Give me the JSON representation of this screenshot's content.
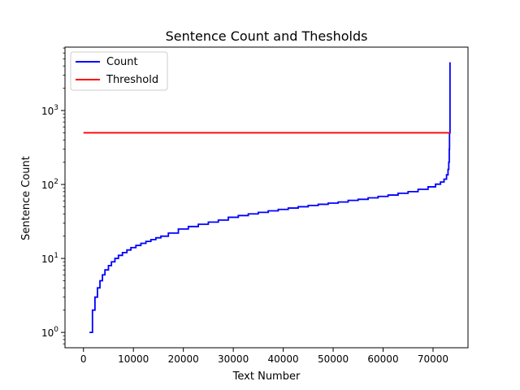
{
  "chart_data": {
    "type": "line",
    "title": "Sentence Count and Thesholds",
    "xlabel": "Text Number",
    "ylabel": "Sentence Count",
    "xlim": [
      -3700,
      77000
    ],
    "ylim": [
      0.62,
      7200
    ],
    "yscale": "log",
    "grid": false,
    "legend_position": "top-left",
    "x_ticks": [
      0,
      10000,
      20000,
      30000,
      40000,
      50000,
      60000,
      70000
    ],
    "x_tick_labels": [
      "0",
      "10000",
      "20000",
      "30000",
      "40000",
      "50000",
      "60000",
      "70000"
    ],
    "y_ticks": [
      1,
      10,
      100,
      1000
    ],
    "y_tick_labels": [
      "10^0",
      "10^1",
      "10^2",
      "10^3"
    ],
    "series": [
      {
        "name": "Count",
        "color": "#0000ff",
        "style": "step",
        "points": [
          [
            1200,
            1
          ],
          [
            1800,
            2
          ],
          [
            2300,
            3
          ],
          [
            2800,
            4
          ],
          [
            3300,
            5
          ],
          [
            3800,
            6
          ],
          [
            4300,
            7
          ],
          [
            5000,
            8
          ],
          [
            5600,
            9
          ],
          [
            6300,
            10
          ],
          [
            7000,
            11
          ],
          [
            7800,
            12
          ],
          [
            8700,
            13
          ],
          [
            9500,
            14
          ],
          [
            10500,
            15
          ],
          [
            11500,
            16
          ],
          [
            12500,
            17
          ],
          [
            13500,
            18
          ],
          [
            14500,
            19
          ],
          [
            15500,
            20
          ],
          [
            17000,
            22
          ],
          [
            19000,
            25
          ],
          [
            21000,
            27
          ],
          [
            23000,
            29
          ],
          [
            25000,
            31
          ],
          [
            27000,
            33
          ],
          [
            29000,
            36
          ],
          [
            31000,
            38
          ],
          [
            33000,
            40
          ],
          [
            35000,
            42
          ],
          [
            37000,
            44
          ],
          [
            39000,
            46
          ],
          [
            41000,
            48
          ],
          [
            43000,
            50
          ],
          [
            45000,
            52
          ],
          [
            47000,
            54
          ],
          [
            49000,
            56
          ],
          [
            51000,
            58
          ],
          [
            53000,
            61
          ],
          [
            55000,
            63
          ],
          [
            57000,
            66
          ],
          [
            59000,
            69
          ],
          [
            61000,
            72
          ],
          [
            63000,
            76
          ],
          [
            65000,
            80
          ],
          [
            67000,
            86
          ],
          [
            69000,
            93
          ],
          [
            70500,
            101
          ],
          [
            71500,
            108
          ],
          [
            72200,
            118
          ],
          [
            72700,
            135
          ],
          [
            73000,
            160
          ],
          [
            73150,
            200
          ],
          [
            73250,
            300
          ],
          [
            73300,
            500
          ],
          [
            73400,
            4500
          ]
        ]
      },
      {
        "name": "Threshold",
        "color": "#ff0000",
        "style": "line",
        "points": [
          [
            0,
            500
          ],
          [
            73400,
            500
          ]
        ]
      }
    ]
  }
}
